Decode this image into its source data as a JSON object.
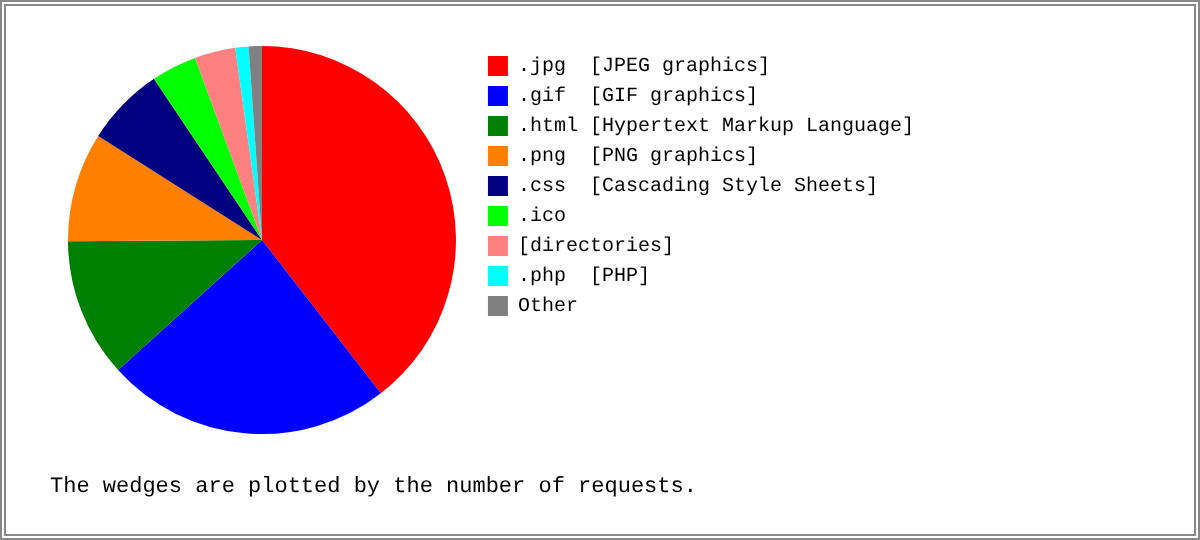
{
  "chart_data": {
    "type": "pie",
    "categories": [
      ".jpg  [JPEG graphics]",
      ".gif  [GIF graphics]",
      ".html [Hypertext Markup Language]",
      ".png  [PNG graphics]",
      ".css  [Cascading Style Sheets]",
      ".ico",
      "[directories]",
      ".php  [PHP]",
      "Other"
    ],
    "values": [
      39.5,
      23.8,
      11.6,
      9.1,
      6.6,
      3.8,
      3.4,
      1.1,
      1.1
    ],
    "colors": [
      "#ff0000",
      "#0000ff",
      "#008000",
      "#ff8000",
      "#000080",
      "#00ff00",
      "#ff8080",
      "#00ffff",
      "#808080"
    ],
    "legend": "right",
    "annotations": [
      "The wedges are plotted by the number of requests."
    ]
  }
}
